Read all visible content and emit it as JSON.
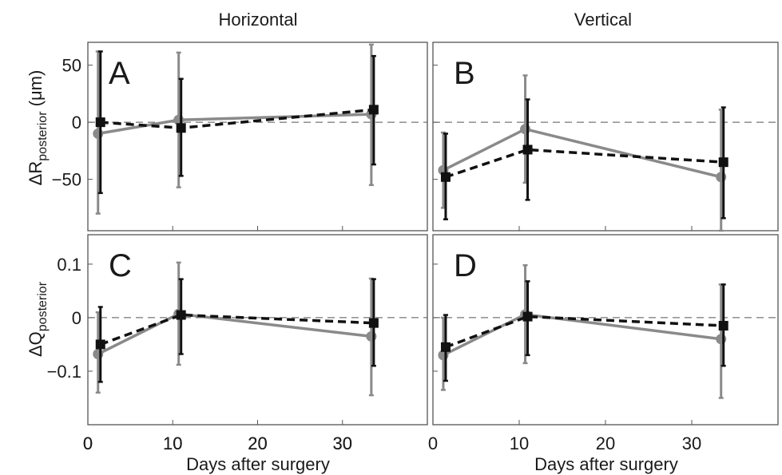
{
  "columns": [
    "Horizontal",
    "Vertical"
  ],
  "x_axis_label": "Days after surgery",
  "row_labels": [
    {
      "main": "ΔR",
      "sub": "posterior",
      "unit": " (μm)"
    },
    {
      "main": "ΔQ",
      "sub": "posterior",
      "unit": ""
    }
  ],
  "colors": {
    "black_series": "#111111",
    "gray_series": "#8a8a8a"
  },
  "chart_data": [
    {
      "panel": "A",
      "type": "line",
      "xlim": [
        0,
        40
      ],
      "ylim": [
        -95,
        70
      ],
      "xticks": [
        "0",
        "10",
        "20",
        "30"
      ],
      "yticks": [
        "50",
        "0",
        "−50"
      ],
      "ytick_values": [
        50,
        0,
        -50
      ],
      "zero_line": true,
      "series": [
        {
          "style": "dashed-black-square",
          "x": [
            1.2,
            10.7,
            33.4
          ],
          "y": [
            0,
            -5,
            11
          ],
          "err_low": [
            -62,
            -47,
            -37
          ],
          "err_high": [
            62,
            38,
            58
          ]
        },
        {
          "style": "solid-gray-circle",
          "x": [
            1.2,
            10.7,
            33.4
          ],
          "y": [
            -10,
            2,
            7
          ],
          "err_low": [
            -80,
            -57,
            -55
          ],
          "err_high": [
            62,
            61,
            68
          ]
        }
      ]
    },
    {
      "panel": "B",
      "type": "line",
      "xlim": [
        0,
        40
      ],
      "ylim": [
        -95,
        70
      ],
      "xticks": [],
      "yticks": [],
      "ytick_values": [
        50,
        0,
        -50
      ],
      "zero_line": true,
      "series": [
        {
          "style": "dashed-black-square",
          "x": [
            1.2,
            10.7,
            33.4
          ],
          "y": [
            -48,
            -24,
            -35
          ],
          "err_low": [
            -85,
            -68,
            -84
          ],
          "err_high": [
            -10,
            20,
            13
          ]
        },
        {
          "style": "solid-gray-circle",
          "x": [
            1.2,
            10.7,
            33.4
          ],
          "y": [
            -42,
            -6,
            -48
          ],
          "err_low": [
            -75,
            -53,
            -95
          ],
          "err_high": [
            -9,
            41,
            11
          ]
        }
      ]
    },
    {
      "panel": "C",
      "type": "line",
      "xlim": [
        0,
        40
      ],
      "ylim": [
        -0.2,
        0.155
      ],
      "xticks": [
        "0",
        "10",
        "20",
        "30"
      ],
      "yticks": [
        "0.1",
        "0",
        "−0.1"
      ],
      "ytick_values": [
        0.1,
        0,
        -0.1
      ],
      "zero_line": true,
      "series": [
        {
          "style": "dashed-black-square",
          "x": [
            1.2,
            10.7,
            33.4
          ],
          "y": [
            -0.05,
            0.005,
            -0.01
          ],
          "err_low": [
            -0.12,
            -0.068,
            -0.09
          ],
          "err_high": [
            0.02,
            0.072,
            0.072
          ]
        },
        {
          "style": "solid-gray-circle",
          "x": [
            1.2,
            10.7,
            33.4
          ],
          "y": [
            -0.068,
            0.007,
            -0.035
          ],
          "err_low": [
            -0.14,
            -0.088,
            -0.145
          ],
          "err_high": [
            0.01,
            0.103,
            0.073
          ]
        }
      ]
    },
    {
      "panel": "D",
      "type": "line",
      "xlim": [
        0,
        40
      ],
      "ylim": [
        -0.2,
        0.155
      ],
      "xticks": [
        "0",
        "10",
        "20",
        "30"
      ],
      "yticks": [],
      "ytick_values": [
        0.1,
        0,
        -0.1
      ],
      "zero_line": true,
      "series": [
        {
          "style": "dashed-black-square",
          "x": [
            1.2,
            10.7,
            33.4
          ],
          "y": [
            -0.055,
            0.002,
            -0.015
          ],
          "err_low": [
            -0.118,
            -0.07,
            -0.09
          ],
          "err_high": [
            0.005,
            0.068,
            0.062
          ]
        },
        {
          "style": "solid-gray-circle",
          "x": [
            1.2,
            10.7,
            33.4
          ],
          "y": [
            -0.07,
            0.006,
            -0.04
          ],
          "err_low": [
            -0.135,
            -0.085,
            -0.15
          ],
          "err_high": [
            0.0,
            0.098,
            0.062
          ]
        }
      ]
    }
  ]
}
